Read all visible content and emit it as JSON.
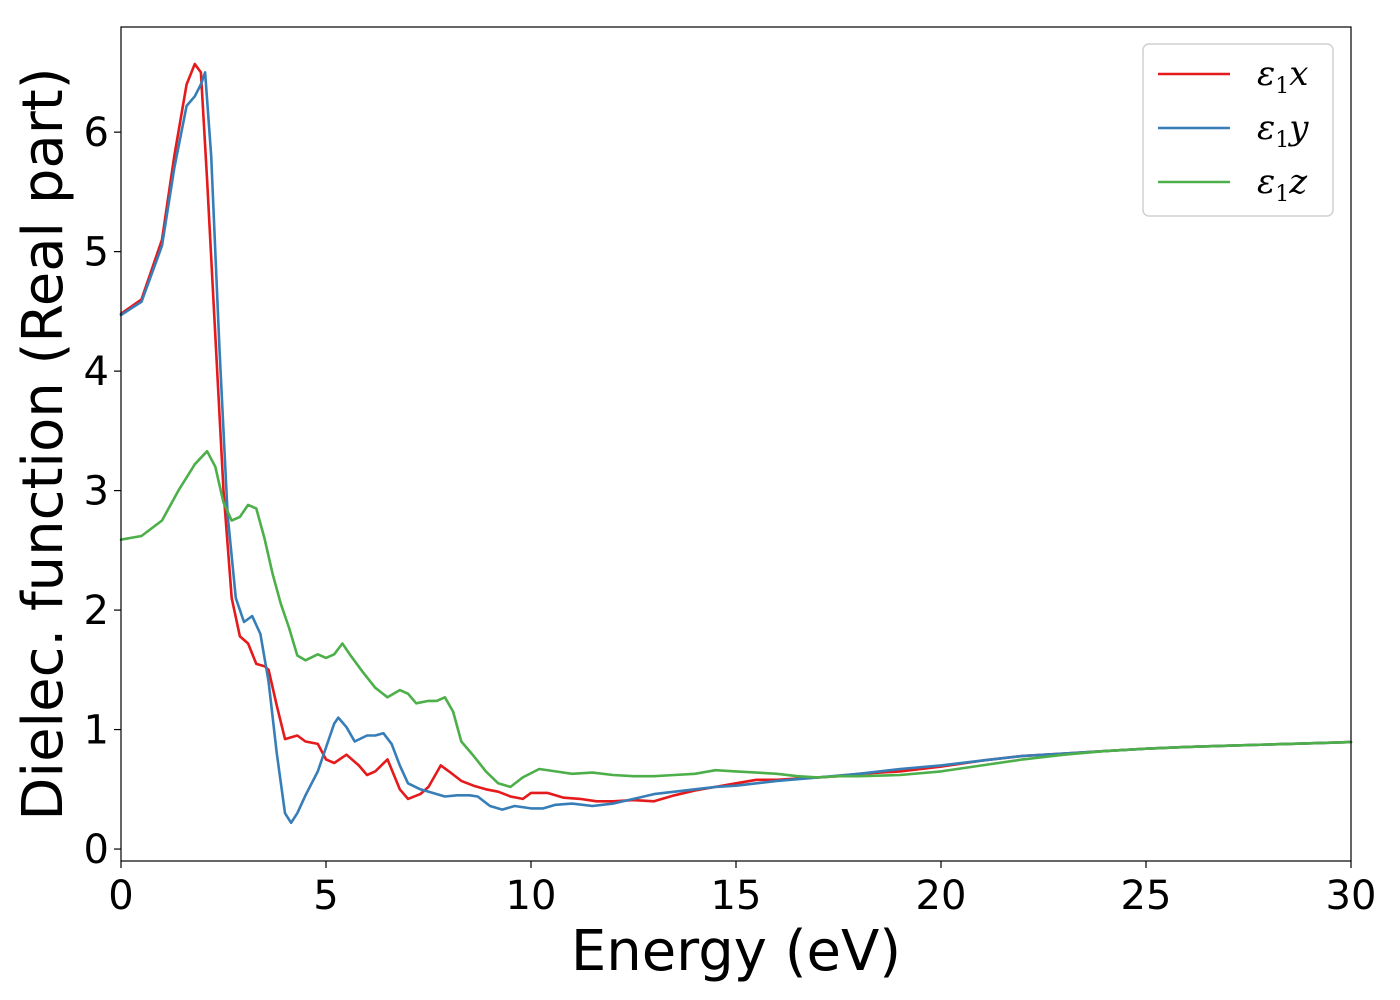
{
  "chart_data": {
    "type": "line",
    "xlabel": "Energy (eV)",
    "ylabel": "Dielec. function (Real part)",
    "xlim": [
      0,
      30
    ],
    "ylim": [
      -0.1,
      6.88
    ],
    "xticks": [
      "0",
      "5",
      "10",
      "15",
      "20",
      "25",
      "30"
    ],
    "yticks": [
      "0",
      "1",
      "2",
      "3",
      "4",
      "5",
      "6"
    ],
    "xtick_values": [
      0,
      5,
      10,
      15,
      20,
      25,
      30
    ],
    "ytick_values": [
      0,
      1,
      2,
      3,
      4,
      5,
      6
    ],
    "grid": false,
    "legend_position": "top-right",
    "series": [
      {
        "name": "ε1x",
        "base": "ε",
        "subscript": "1",
        "suffix": "x",
        "color": "#e41a1c",
        "points": [
          [
            0,
            4.48
          ],
          [
            0.5,
            4.6
          ],
          [
            1.0,
            5.1
          ],
          [
            1.3,
            5.8
          ],
          [
            1.6,
            6.4
          ],
          [
            1.8,
            6.57
          ],
          [
            1.95,
            6.5
          ],
          [
            2.1,
            5.6
          ],
          [
            2.3,
            4.3
          ],
          [
            2.5,
            3.0
          ],
          [
            2.7,
            2.1
          ],
          [
            2.9,
            1.78
          ],
          [
            3.1,
            1.72
          ],
          [
            3.3,
            1.55
          ],
          [
            3.5,
            1.53
          ],
          [
            3.6,
            1.5
          ],
          [
            3.8,
            1.2
          ],
          [
            4.0,
            0.92
          ],
          [
            4.3,
            0.95
          ],
          [
            4.5,
            0.9
          ],
          [
            4.8,
            0.88
          ],
          [
            5.0,
            0.75
          ],
          [
            5.2,
            0.72
          ],
          [
            5.5,
            0.79
          ],
          [
            5.8,
            0.7
          ],
          [
            6.0,
            0.62
          ],
          [
            6.2,
            0.65
          ],
          [
            6.5,
            0.75
          ],
          [
            6.8,
            0.5
          ],
          [
            7.0,
            0.42
          ],
          [
            7.3,
            0.46
          ],
          [
            7.5,
            0.52
          ],
          [
            7.8,
            0.7
          ],
          [
            8.0,
            0.65
          ],
          [
            8.3,
            0.57
          ],
          [
            8.6,
            0.53
          ],
          [
            8.9,
            0.5
          ],
          [
            9.2,
            0.48
          ],
          [
            9.5,
            0.44
          ],
          [
            9.8,
            0.42
          ],
          [
            10.0,
            0.47
          ],
          [
            10.4,
            0.47
          ],
          [
            10.8,
            0.43
          ],
          [
            11.2,
            0.42
          ],
          [
            11.6,
            0.4
          ],
          [
            12.0,
            0.4
          ],
          [
            12.5,
            0.41
          ],
          [
            13.0,
            0.4
          ],
          [
            13.5,
            0.45
          ],
          [
            14.0,
            0.49
          ],
          [
            14.5,
            0.52
          ],
          [
            15.0,
            0.55
          ],
          [
            15.5,
            0.58
          ],
          [
            16.0,
            0.58
          ],
          [
            16.5,
            0.59
          ],
          [
            17.0,
            0.6
          ],
          [
            17.5,
            0.61
          ],
          [
            18.0,
            0.63
          ],
          [
            19.0,
            0.65
          ],
          [
            20.0,
            0.69
          ],
          [
            21.0,
            0.74
          ],
          [
            22.0,
            0.78
          ],
          [
            23.0,
            0.8
          ],
          [
            24.0,
            0.82
          ],
          [
            25.0,
            0.84
          ],
          [
            26.0,
            0.855
          ],
          [
            27.0,
            0.865
          ],
          [
            28.0,
            0.875
          ],
          [
            29.0,
            0.885
          ],
          [
            30.0,
            0.895
          ]
        ]
      },
      {
        "name": "ε1y",
        "base": "ε",
        "subscript": "1",
        "suffix": "y",
        "color": "#377eb8",
        "points": [
          [
            0,
            4.47
          ],
          [
            0.5,
            4.58
          ],
          [
            1.0,
            5.05
          ],
          [
            1.3,
            5.7
          ],
          [
            1.6,
            6.22
          ],
          [
            1.8,
            6.3
          ],
          [
            1.95,
            6.4
          ],
          [
            2.05,
            6.5
          ],
          [
            2.2,
            5.8
          ],
          [
            2.4,
            4.2
          ],
          [
            2.6,
            2.8
          ],
          [
            2.8,
            2.1
          ],
          [
            3.0,
            1.9
          ],
          [
            3.2,
            1.95
          ],
          [
            3.4,
            1.8
          ],
          [
            3.6,
            1.4
          ],
          [
            3.8,
            0.8
          ],
          [
            4.0,
            0.3
          ],
          [
            4.15,
            0.22
          ],
          [
            4.3,
            0.3
          ],
          [
            4.5,
            0.45
          ],
          [
            4.8,
            0.65
          ],
          [
            5.0,
            0.85
          ],
          [
            5.2,
            1.05
          ],
          [
            5.3,
            1.1
          ],
          [
            5.5,
            1.02
          ],
          [
            5.7,
            0.9
          ],
          [
            6.0,
            0.95
          ],
          [
            6.2,
            0.95
          ],
          [
            6.4,
            0.97
          ],
          [
            6.6,
            0.88
          ],
          [
            6.8,
            0.7
          ],
          [
            7.0,
            0.55
          ],
          [
            7.3,
            0.5
          ],
          [
            7.6,
            0.47
          ],
          [
            7.9,
            0.44
          ],
          [
            8.2,
            0.45
          ],
          [
            8.5,
            0.45
          ],
          [
            8.7,
            0.44
          ],
          [
            9.0,
            0.36
          ],
          [
            9.3,
            0.33
          ],
          [
            9.6,
            0.36
          ],
          [
            10.0,
            0.34
          ],
          [
            10.3,
            0.34
          ],
          [
            10.6,
            0.37
          ],
          [
            11.0,
            0.38
          ],
          [
            11.5,
            0.36
          ],
          [
            12.0,
            0.38
          ],
          [
            12.5,
            0.42
          ],
          [
            13.0,
            0.46
          ],
          [
            13.5,
            0.48
          ],
          [
            14.0,
            0.5
          ],
          [
            14.5,
            0.52
          ],
          [
            15.0,
            0.53
          ],
          [
            15.5,
            0.55
          ],
          [
            16.0,
            0.57
          ],
          [
            17.0,
            0.6
          ],
          [
            18.0,
            0.63
          ],
          [
            19.0,
            0.67
          ],
          [
            20.0,
            0.7
          ],
          [
            21.0,
            0.74
          ],
          [
            22.0,
            0.78
          ],
          [
            23.0,
            0.8
          ],
          [
            24.0,
            0.82
          ],
          [
            25.0,
            0.84
          ],
          [
            26.0,
            0.855
          ],
          [
            27.0,
            0.865
          ],
          [
            28.0,
            0.875
          ],
          [
            29.0,
            0.885
          ],
          [
            30.0,
            0.895
          ]
        ]
      },
      {
        "name": "ε1z",
        "base": "ε",
        "subscript": "1",
        "suffix": "z",
        "color": "#4daf4a",
        "points": [
          [
            0,
            2.59
          ],
          [
            0.5,
            2.62
          ],
          [
            1.0,
            2.75
          ],
          [
            1.4,
            3.0
          ],
          [
            1.8,
            3.22
          ],
          [
            2.1,
            3.33
          ],
          [
            2.3,
            3.2
          ],
          [
            2.5,
            2.9
          ],
          [
            2.7,
            2.75
          ],
          [
            2.9,
            2.78
          ],
          [
            3.1,
            2.88
          ],
          [
            3.3,
            2.85
          ],
          [
            3.5,
            2.6
          ],
          [
            3.7,
            2.3
          ],
          [
            3.9,
            2.05
          ],
          [
            4.1,
            1.85
          ],
          [
            4.3,
            1.62
          ],
          [
            4.5,
            1.58
          ],
          [
            4.8,
            1.63
          ],
          [
            5.0,
            1.6
          ],
          [
            5.2,
            1.63
          ],
          [
            5.4,
            1.72
          ],
          [
            5.6,
            1.62
          ],
          [
            5.9,
            1.48
          ],
          [
            6.2,
            1.35
          ],
          [
            6.5,
            1.27
          ],
          [
            6.8,
            1.33
          ],
          [
            7.0,
            1.3
          ],
          [
            7.2,
            1.22
          ],
          [
            7.5,
            1.24
          ],
          [
            7.7,
            1.24
          ],
          [
            7.9,
            1.27
          ],
          [
            8.1,
            1.15
          ],
          [
            8.3,
            0.9
          ],
          [
            8.6,
            0.78
          ],
          [
            8.9,
            0.65
          ],
          [
            9.2,
            0.55
          ],
          [
            9.5,
            0.52
          ],
          [
            9.8,
            0.6
          ],
          [
            10.2,
            0.67
          ],
          [
            10.6,
            0.65
          ],
          [
            11.0,
            0.63
          ],
          [
            11.5,
            0.64
          ],
          [
            12.0,
            0.62
          ],
          [
            12.5,
            0.61
          ],
          [
            13.0,
            0.61
          ],
          [
            13.5,
            0.62
          ],
          [
            14.0,
            0.63
          ],
          [
            14.5,
            0.66
          ],
          [
            15.0,
            0.65
          ],
          [
            15.5,
            0.64
          ],
          [
            16.0,
            0.63
          ],
          [
            16.5,
            0.61
          ],
          [
            17.0,
            0.6
          ],
          [
            17.5,
            0.61
          ],
          [
            18.0,
            0.61
          ],
          [
            19.0,
            0.62
          ],
          [
            20.0,
            0.65
          ],
          [
            21.0,
            0.7
          ],
          [
            22.0,
            0.75
          ],
          [
            23.0,
            0.79
          ],
          [
            24.0,
            0.82
          ],
          [
            25.0,
            0.84
          ],
          [
            26.0,
            0.855
          ],
          [
            27.0,
            0.865
          ],
          [
            28.0,
            0.875
          ],
          [
            29.0,
            0.885
          ],
          [
            30.0,
            0.895
          ]
        ]
      }
    ]
  }
}
